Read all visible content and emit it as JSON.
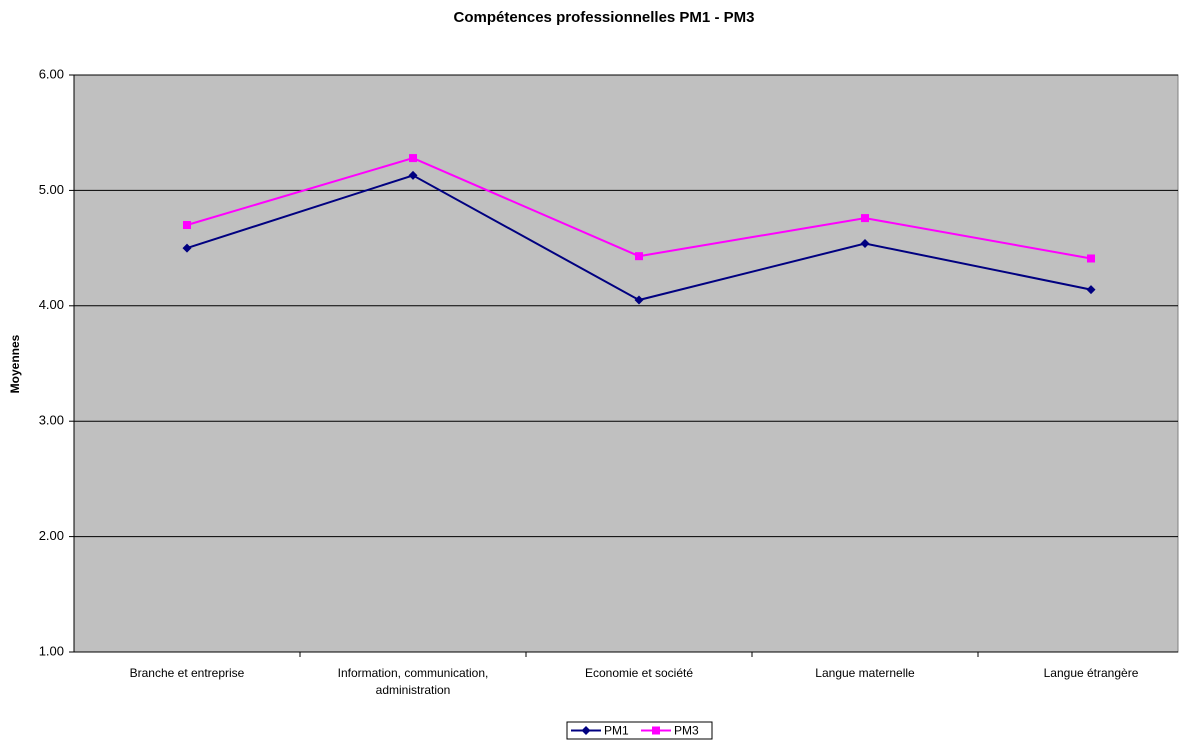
{
  "chart_data": {
    "type": "line",
    "title": "Compétences professionnelles PM1 - PM3",
    "y_label": "Moyennes",
    "categories": [
      "Branche et entreprise",
      "Information, communication, administration",
      "Economie et société",
      "Langue maternelle",
      "Langue étrangère"
    ],
    "series": [
      {
        "name": "PM1",
        "color": "#000080",
        "marker": "diamond",
        "values": [
          4.5,
          5.13,
          4.05,
          4.54,
          4.14
        ]
      },
      {
        "name": "PM3",
        "color": "#ff00ff",
        "marker": "square",
        "values": [
          4.7,
          5.28,
          4.43,
          4.76,
          4.41
        ]
      }
    ],
    "ylim": [
      1,
      6
    ],
    "yticks": [
      {
        "value": 1,
        "label": "1.00"
      },
      {
        "value": 2,
        "label": "2.00"
      },
      {
        "value": 3,
        "label": "3.00"
      },
      {
        "value": 4,
        "label": "4.00"
      },
      {
        "value": 5,
        "label": "5.00"
      },
      {
        "value": 6,
        "label": "6.00"
      }
    ],
    "grid": true,
    "legend": "bottom"
  }
}
